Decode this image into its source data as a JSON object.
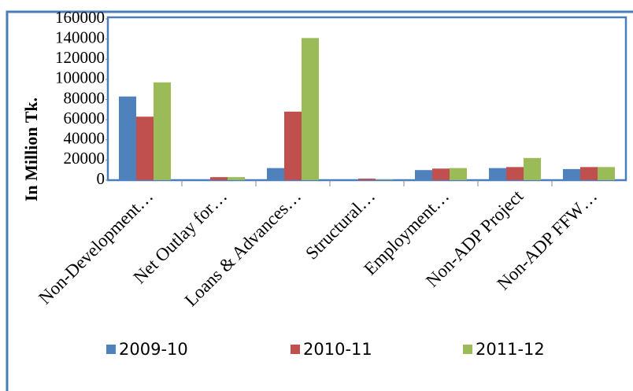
{
  "chart_data": {
    "type": "bar",
    "y_label": "In Million Tk.",
    "categories": [
      "Non-Development…",
      "Net Outlay for…",
      "Loans & Advances…",
      "Structural…",
      "Employment…",
      "Non-ADP Project",
      "Non-ADP FFW…"
    ],
    "series": [
      {
        "name": "2009-10",
        "color": "#4f81bd",
        "values": [
          83000,
          500,
          12000,
          0,
          10000,
          12000,
          11000
        ]
      },
      {
        "name": "2010-11",
        "color": "#c0504d",
        "values": [
          63000,
          3000,
          68000,
          1500,
          11500,
          13000,
          13000
        ]
      },
      {
        "name": "2011-12",
        "color": "#9bbb59",
        "values": [
          97000,
          3000,
          141000,
          500,
          12000,
          22000,
          13000
        ]
      }
    ],
    "ylim": [
      0,
      160000
    ],
    "yticks": [
      0,
      20000,
      40000,
      60000,
      80000,
      100000,
      120000,
      140000,
      160000
    ],
    "grid": false,
    "legend": "bottom"
  }
}
